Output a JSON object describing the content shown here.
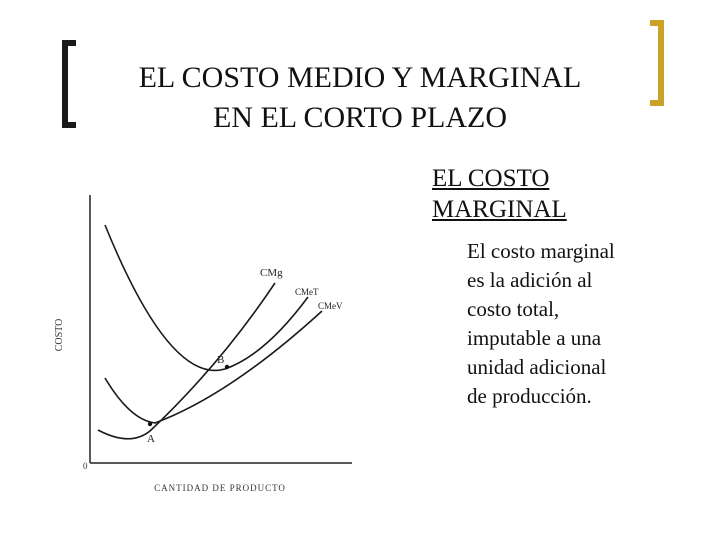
{
  "slide": {
    "title_line1": "EL COSTO MEDIO Y MARGINAL",
    "title_line2": "EN EL CORTO PLAZO",
    "subtitle_line1": "EL COSTO",
    "subtitle_line2": "MARGINAL",
    "body_lines": [
      "El costo marginal",
      "es la adición al",
      "costo  total,",
      "imputable a una",
      "unidad adicional",
      "de producción."
    ]
  },
  "diagram": {
    "y_axis_label": "COSTO",
    "x_axis_label": "CANTIDAD DE PRODUCTO",
    "origin_label": "0",
    "curve_labels": {
      "cmg": "CMg",
      "cmet": "CMeT",
      "cmev": "CMeV"
    },
    "point_labels": {
      "a": "A",
      "b": "B"
    }
  }
}
